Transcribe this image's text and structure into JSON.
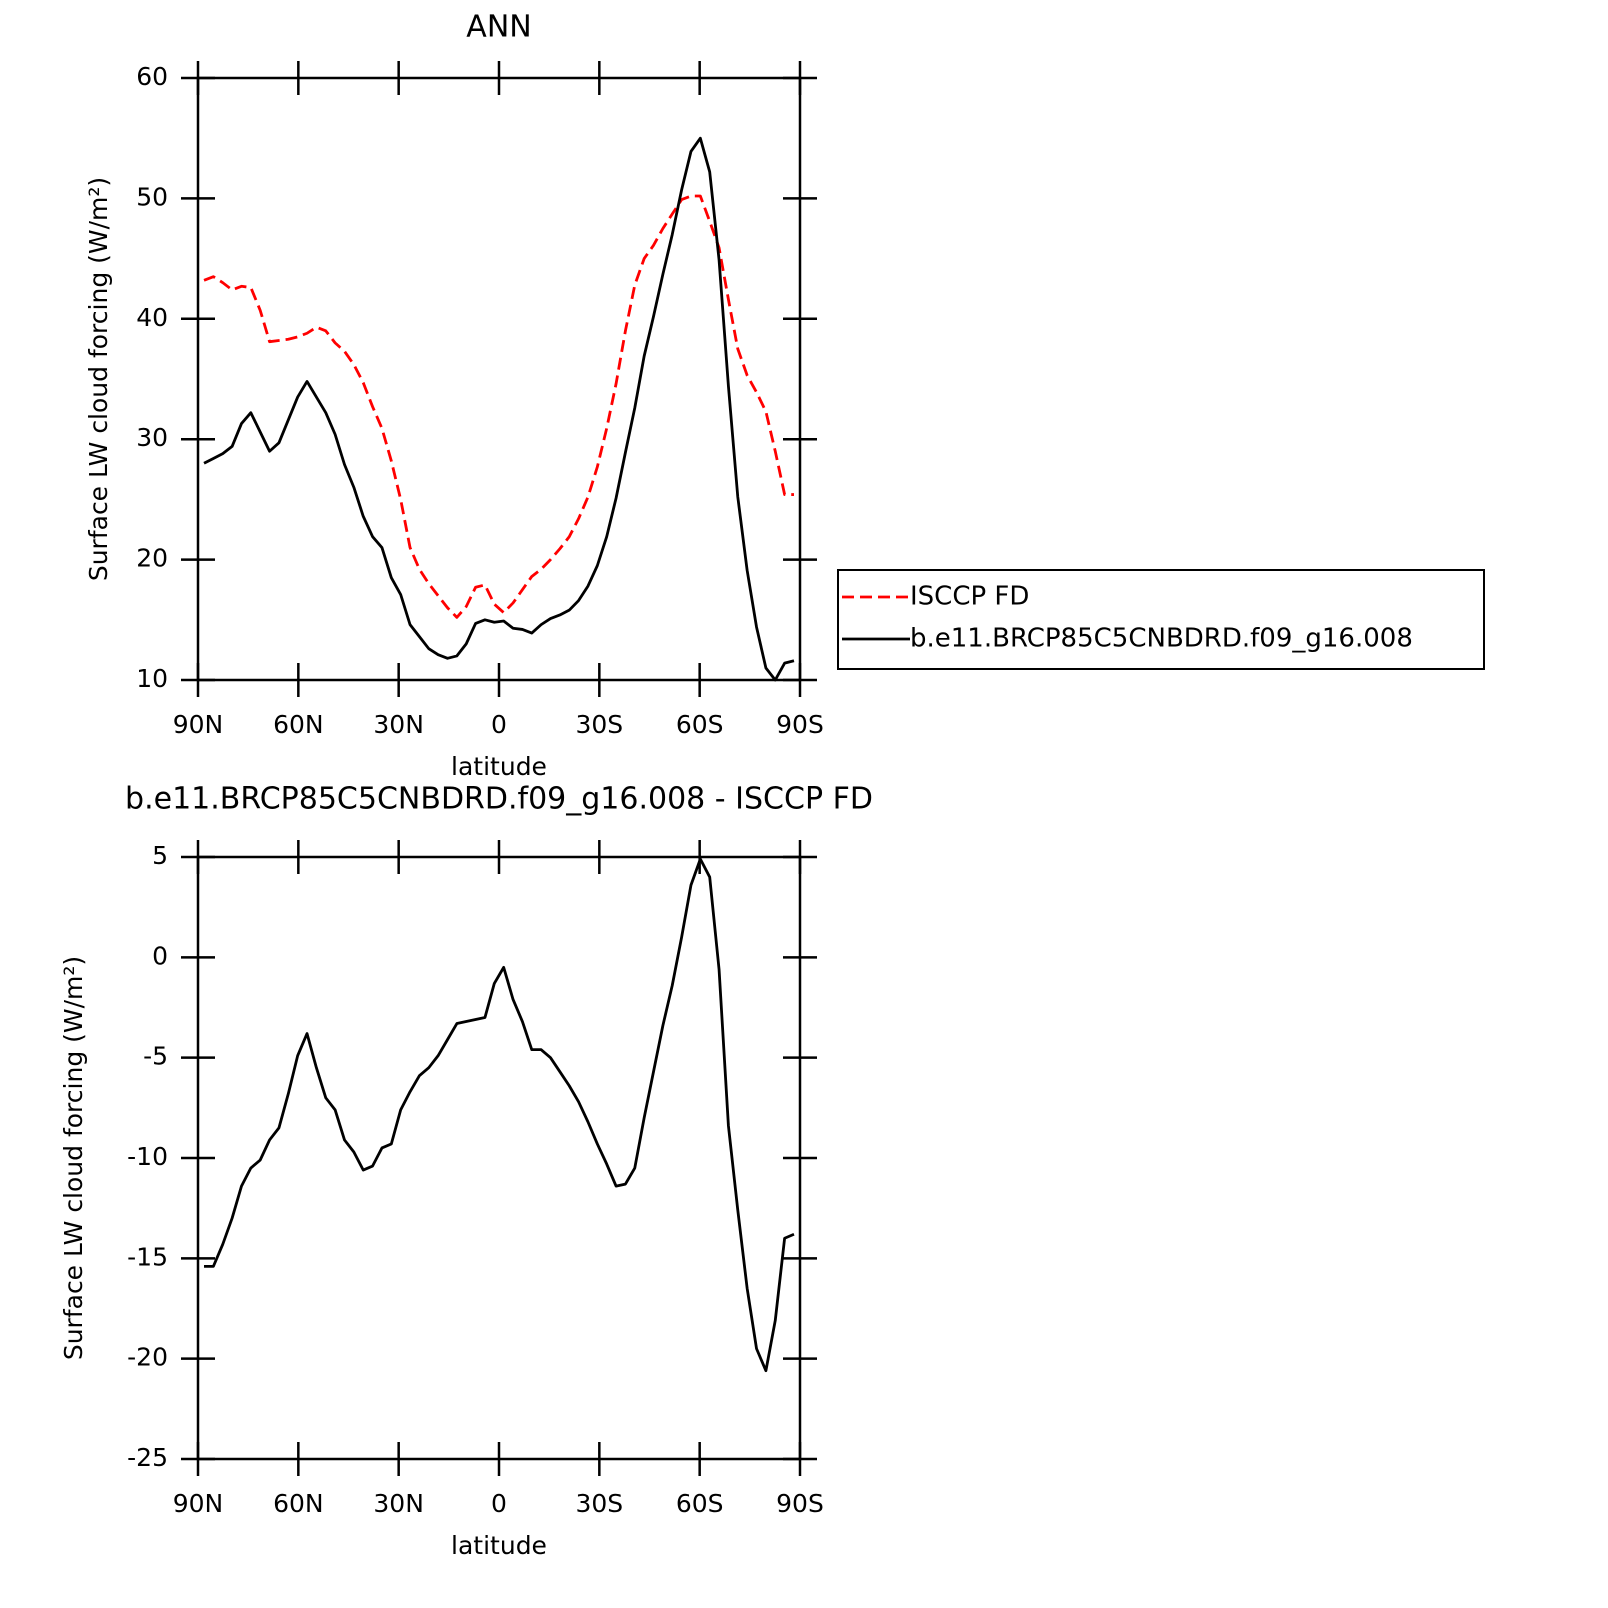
{
  "chart_data": [
    {
      "type": "line",
      "title": "ANN",
      "xlabel": "latitude",
      "ylabel": "Surface LW cloud forcing (W/m²)",
      "x": [
        88.2,
        85.4,
        82.6,
        79.8,
        77.0,
        74.2,
        71.4,
        68.6,
        65.8,
        63.0,
        60.2,
        57.4,
        54.6,
        51.8,
        49.0,
        46.2,
        43.4,
        40.6,
        37.8,
        35.0,
        32.2,
        29.4,
        26.6,
        23.8,
        21.0,
        18.2,
        15.4,
        12.6,
        9.8,
        7.0,
        4.2,
        1.4,
        -1.4,
        -4.2,
        -7.0,
        -9.8,
        -12.6,
        -15.4,
        -18.2,
        -21.0,
        -23.8,
        -26.6,
        -29.4,
        -32.2,
        -35.0,
        -37.8,
        -40.6,
        -43.4,
        -46.2,
        -49.0,
        -51.8,
        -54.6,
        -57.4,
        -60.2,
        -63.0,
        -65.8,
        -68.6,
        -71.4,
        -74.2,
        -77.0,
        -79.8,
        -82.6,
        -85.4,
        -88.2
      ],
      "xlim": [
        90,
        -90
      ],
      "xticks": [
        {
          "value": 90,
          "label": "90N"
        },
        {
          "value": 60,
          "label": "60N"
        },
        {
          "value": 30,
          "label": "30N"
        },
        0,
        {
          "value": -30,
          "label": "30S"
        },
        {
          "value": -60,
          "label": "60S"
        },
        {
          "value": -90,
          "label": "90S"
        }
      ],
      "ylim": [
        10,
        60
      ],
      "yticks": [
        10,
        20,
        30,
        40,
        50,
        60
      ],
      "legend": "right",
      "series": [
        {
          "name": "ISCCP FD",
          "color": "#ff0000",
          "linestyle": "dashed",
          "values": [
            43.2,
            43.5,
            43.0,
            42.4,
            42.7,
            42.6,
            40.7,
            38.1,
            38.2,
            38.3,
            38.5,
            38.8,
            39.3,
            39.0,
            38.0,
            37.3,
            36.2,
            34.7,
            32.7,
            30.9,
            28.2,
            25.0,
            21.0,
            19.2,
            18.0,
            17.0,
            16.0,
            15.2,
            16.1,
            17.7,
            17.9,
            16.3,
            15.6,
            16.4,
            17.5,
            18.6,
            19.2,
            20.0,
            20.9,
            21.9,
            23.4,
            25.2,
            27.7,
            30.9,
            34.6,
            39.0,
            42.8,
            45.0,
            46.1,
            47.5,
            48.7,
            49.9,
            50.2,
            50.2,
            48.1,
            45.9,
            41.6,
            37.5,
            35.3,
            33.9,
            32.3,
            29.0,
            25.4,
            25.4
          ]
        },
        {
          "name": "b.e11.BRCP85C5CNBDRD.f09_g16.008",
          "color": "#000000",
          "linestyle": "solid",
          "values": [
            28.0,
            28.4,
            28.8,
            29.4,
            31.3,
            32.2,
            30.6,
            29.0,
            29.7,
            31.6,
            33.5,
            34.8,
            33.5,
            32.2,
            30.4,
            27.9,
            26.0,
            23.6,
            21.9,
            21.0,
            18.5,
            17.1,
            14.6,
            13.6,
            12.6,
            12.1,
            11.8,
            12.0,
            13.0,
            14.7,
            15.0,
            14.8,
            14.9,
            14.3,
            14.2,
            13.9,
            14.6,
            15.1,
            15.4,
            15.8,
            16.6,
            17.8,
            19.5,
            21.9,
            25.1,
            28.9,
            32.6,
            36.9,
            40.2,
            43.7,
            47.0,
            50.7,
            53.9,
            55.0,
            52.2,
            44.9,
            34.4,
            25.2,
            19.1,
            14.4,
            11.0,
            10.0,
            11.4,
            11.6
          ]
        }
      ]
    },
    {
      "type": "line",
      "title": "b.e11.BRCP85C5CNBDRD.f09_g16.008 - ISCCP FD",
      "xlabel": "latitude",
      "ylabel": "Surface LW cloud forcing (W/m²)",
      "x": [
        88.2,
        85.4,
        82.6,
        79.8,
        77.0,
        74.2,
        71.4,
        68.6,
        65.8,
        63.0,
        60.2,
        57.4,
        54.6,
        51.8,
        49.0,
        46.2,
        43.4,
        40.6,
        37.8,
        35.0,
        32.2,
        29.4,
        26.6,
        23.8,
        21.0,
        18.2,
        15.4,
        12.6,
        9.8,
        7.0,
        4.2,
        1.4,
        -1.4,
        -4.2,
        -7.0,
        -9.8,
        -12.6,
        -15.4,
        -18.2,
        -21.0,
        -23.8,
        -26.6,
        -29.4,
        -32.2,
        -35.0,
        -37.8,
        -40.6,
        -43.4,
        -46.2,
        -49.0,
        -51.8,
        -54.6,
        -57.4,
        -60.2,
        -63.0,
        -65.8,
        -68.6,
        -71.4,
        -74.2,
        -77.0,
        -79.8,
        -82.6,
        -85.4,
        -88.2
      ],
      "xlim": [
        90,
        -90
      ],
      "xticks": [
        {
          "value": 90,
          "label": "90N"
        },
        {
          "value": 60,
          "label": "60N"
        },
        {
          "value": 30,
          "label": "30N"
        },
        0,
        {
          "value": -30,
          "label": "30S"
        },
        {
          "value": -60,
          "label": "60S"
        },
        {
          "value": -90,
          "label": "90S"
        }
      ],
      "ylim": [
        -25,
        5
      ],
      "yticks": [
        -25,
        -20,
        -15,
        -10,
        -5,
        0,
        5
      ],
      "series": [
        {
          "color": "#000000",
          "linestyle": "solid",
          "values": [
            -15.4,
            -15.4,
            -14.3,
            -13.0,
            -11.4,
            -10.5,
            -10.1,
            -9.1,
            -8.5,
            -6.8,
            -4.9,
            -3.8,
            -5.5,
            -7.0,
            -7.6,
            -9.1,
            -9.7,
            -10.6,
            -10.4,
            -9.5,
            -9.3,
            -7.6,
            -6.7,
            -5.9,
            -5.5,
            -4.9,
            -4.1,
            -3.3,
            -3.2,
            -3.1,
            -3.0,
            -1.3,
            -0.5,
            -2.1,
            -3.2,
            -4.6,
            -4.6,
            -5.0,
            -5.7,
            -6.4,
            -7.2,
            -8.2,
            -9.3,
            -10.3,
            -11.4,
            -11.3,
            -10.5,
            -8.0,
            -5.7,
            -3.4,
            -1.4,
            1.0,
            3.6,
            4.9,
            4.0,
            -0.6,
            -8.4,
            -12.6,
            -16.5,
            -19.5,
            -20.6,
            -18.1,
            -14.0,
            -13.8
          ]
        }
      ]
    }
  ]
}
